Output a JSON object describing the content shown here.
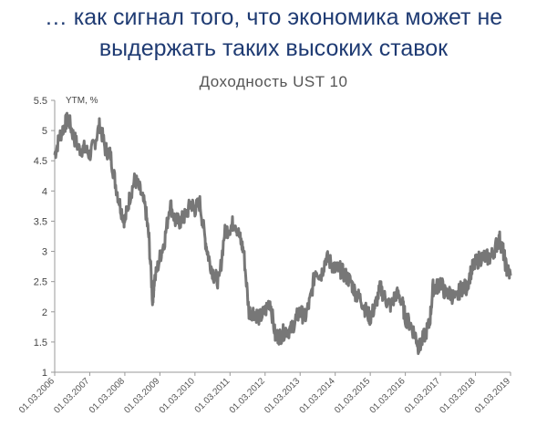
{
  "headline": {
    "line1": "… как сигнал того, что экономика может не",
    "line2": "выдержать таких высоких ставок"
  },
  "colors": {
    "headline": "#1f3b73",
    "series": "#777777",
    "axis": "#999999"
  },
  "chart_data": {
    "type": "line",
    "title": "Доходность UST 10",
    "xlabel": "",
    "ylabel": "YTM, %",
    "ylim": [
      1,
      5.5
    ],
    "yticks": [
      "1",
      "1.5",
      "2",
      "2.5",
      "3",
      "3.5",
      "4",
      "4.5",
      "5",
      "5.5"
    ],
    "xticks": [
      "01.03.2006",
      "01.03.2007",
      "01.03.2008",
      "01.03.2009",
      "01.03.2010",
      "01.03.2011",
      "01.03.2012",
      "01.03.2013",
      "01.03.2014",
      "01.03.2015",
      "01.03.2016",
      "01.03.2017",
      "01.03.2018",
      "01.03.2019"
    ],
    "grid": false,
    "series": [
      {
        "values_x": [
          2006.16,
          2006.3,
          2006.45,
          2006.55,
          2006.7,
          2006.85,
          2007.0,
          2007.16,
          2007.3,
          2007.45,
          2007.6,
          2007.75,
          2007.9,
          2008.05,
          2008.16,
          2008.3,
          2008.45,
          2008.6,
          2008.75,
          2008.85,
          2008.95,
          2009.0,
          2009.16,
          2009.3,
          2009.45,
          2009.6,
          2009.75,
          2009.9,
          2010.05,
          2010.16,
          2010.3,
          2010.45,
          2010.55,
          2010.7,
          2010.85,
          2011.0,
          2011.16,
          2011.3,
          2011.45,
          2011.55,
          2011.7,
          2011.85,
          2012.0,
          2012.16,
          2012.3,
          2012.45,
          2012.6,
          2012.75,
          2012.9,
          2013.05,
          2013.16,
          2013.3,
          2013.45,
          2013.6,
          2013.75,
          2013.9,
          2014.05,
          2014.16,
          2014.3,
          2014.45,
          2014.6,
          2014.75,
          2014.9,
          2015.05,
          2015.16,
          2015.3,
          2015.45,
          2015.6,
          2015.75,
          2015.9,
          2016.05,
          2016.16,
          2016.3,
          2016.45,
          2016.55,
          2016.7,
          2016.85,
          2016.95,
          2017.05,
          2017.16,
          2017.3,
          2017.45,
          2017.6,
          2017.75,
          2017.9,
          2018.05,
          2018.16,
          2018.3,
          2018.45,
          2018.6,
          2018.75,
          2018.85,
          2018.95,
          2019.05,
          2019.16
        ],
        "values": [
          4.6,
          4.9,
          5.1,
          5.2,
          4.9,
          4.7,
          4.7,
          4.6,
          4.8,
          5.1,
          4.7,
          4.6,
          4.1,
          3.7,
          3.5,
          3.9,
          4.2,
          4.0,
          3.7,
          3.2,
          2.2,
          2.5,
          2.9,
          3.2,
          3.8,
          3.5,
          3.5,
          3.6,
          3.8,
          3.7,
          3.8,
          3.2,
          2.9,
          2.6,
          2.5,
          3.3,
          3.4,
          3.5,
          3.2,
          3.0,
          2.0,
          2.0,
          1.9,
          2.0,
          2.2,
          1.6,
          1.6,
          1.7,
          1.7,
          1.9,
          2.0,
          1.9,
          2.2,
          2.7,
          2.6,
          2.9,
          2.8,
          2.7,
          2.7,
          2.6,
          2.5,
          2.3,
          2.2,
          2.0,
          1.9,
          2.1,
          2.4,
          2.2,
          2.1,
          2.3,
          2.2,
          1.9,
          1.8,
          1.6,
          1.4,
          1.6,
          1.8,
          2.4,
          2.4,
          2.5,
          2.3,
          2.3,
          2.2,
          2.4,
          2.4,
          2.7,
          2.8,
          2.9,
          2.9,
          2.9,
          3.1,
          3.2,
          3.0,
          2.7,
          2.6
        ]
      }
    ]
  }
}
